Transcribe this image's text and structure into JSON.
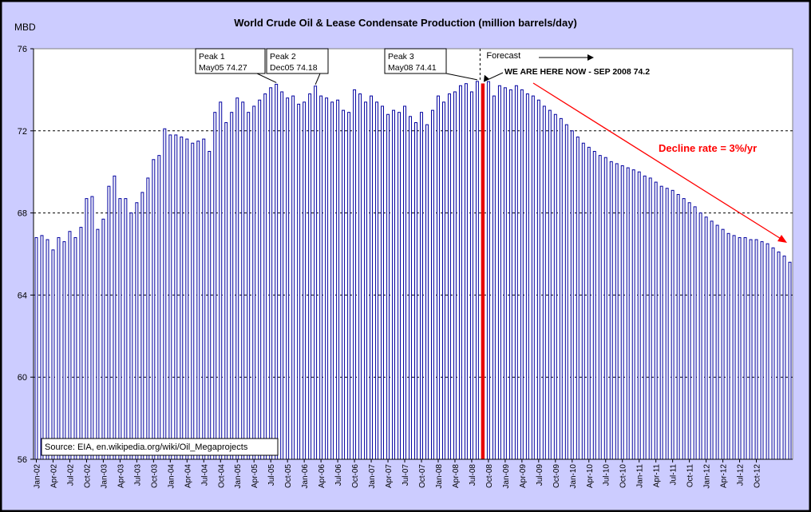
{
  "chart_data": {
    "type": "bar",
    "title": "World Crude Oil & Lease Condensate Production (million barrels/day)",
    "ylabel": "MBD",
    "xlabel": "",
    "ylim": [
      56,
      76
    ],
    "yticks": [
      56,
      60,
      64,
      68,
      72,
      76
    ],
    "grid": "dashed horizontal",
    "source": "Source: EIA, en.wikipedia.org/wiki/Oil_Megaprojects",
    "xtick_labels": [
      "Jan-02",
      "Apr-02",
      "Jul-02",
      "Oct-02",
      "Jan-03",
      "Apr-03",
      "Jul-03",
      "Oct-03",
      "Jan-04",
      "Apr-04",
      "Jul-04",
      "Oct-04",
      "Jan-05",
      "Apr-05",
      "Jul-05",
      "Oct-05",
      "Jan-06",
      "Apr-06",
      "Jul-06",
      "Oct-06",
      "Jan-07",
      "Apr-07",
      "Jul-07",
      "Oct-07",
      "Jan-08",
      "Apr-08",
      "Jul-08",
      "Oct-08",
      "Jan-09",
      "Apr-09",
      "Jul-09",
      "Oct-09",
      "Jan-10",
      "Apr-10",
      "Jul-10",
      "Oct-10",
      "Jan-11",
      "Apr-11",
      "Jul-11",
      "Oct-11",
      "Jan-12",
      "Apr-12",
      "Jul-12",
      "Oct-12"
    ],
    "start": "Jan-02",
    "values": [
      66.8,
      66.9,
      66.7,
      66.2,
      66.8,
      66.6,
      67.1,
      66.8,
      67.3,
      68.7,
      68.8,
      67.2,
      67.7,
      69.3,
      69.8,
      68.7,
      68.7,
      68.0,
      68.5,
      69.0,
      69.7,
      70.6,
      70.8,
      72.1,
      71.8,
      71.8,
      71.7,
      71.6,
      71.4,
      71.5,
      71.6,
      71.0,
      72.9,
      73.4,
      72.4,
      72.9,
      73.6,
      73.4,
      72.9,
      73.2,
      73.5,
      73.8,
      74.1,
      74.27,
      73.9,
      73.6,
      73.7,
      73.3,
      73.4,
      73.8,
      74.18,
      73.7,
      73.6,
      73.4,
      73.5,
      73.0,
      72.9,
      74.0,
      73.8,
      73.4,
      73.7,
      73.4,
      73.2,
      72.8,
      73.0,
      72.9,
      73.2,
      72.7,
      72.4,
      72.9,
      72.3,
      73.0,
      73.7,
      73.4,
      73.8,
      73.9,
      74.2,
      74.3,
      73.9,
      74.41,
      74.3,
      74.4,
      73.7,
      74.2,
      74.1,
      74.0,
      74.2,
      74.0,
      73.8,
      73.7,
      73.5,
      73.2,
      73.0,
      72.8,
      72.6,
      72.3,
      72.0,
      71.7,
      71.4,
      71.2,
      71.0,
      70.8,
      70.7,
      70.5,
      70.4,
      70.3,
      70.2,
      70.1,
      70.0,
      69.8,
      69.7,
      69.5,
      69.3,
      69.2,
      69.1,
      68.9,
      68.7,
      68.5,
      68.3,
      68.0,
      67.8,
      67.6,
      67.4,
      67.2,
      67.0,
      66.9,
      66.8,
      66.8,
      66.7,
      66.7,
      66.6,
      66.5,
      66.3,
      66.1,
      65.9,
      65.6
    ],
    "highlight": {
      "index": 80,
      "color": "#ff0000"
    },
    "annotations": {
      "peak1": "Peak 1\nMay05 74.27",
      "peak2": "Peak 2\nDec05 74.18",
      "peak3": "Peak 3\nMay08 74.41",
      "forecast": "Forecast",
      "here_now": "WE ARE HERE NOW - SEP 2008 74.2",
      "decline": "Decline rate =  3%/yr"
    },
    "colors": {
      "bar_fill": "#0000a0",
      "bar_highlight": "#e80000",
      "plot_bg": "#ffffff",
      "outer_bg": "#ccccff",
      "decline": "#ff0000",
      "peak_box_bg": "#ffffff"
    }
  }
}
